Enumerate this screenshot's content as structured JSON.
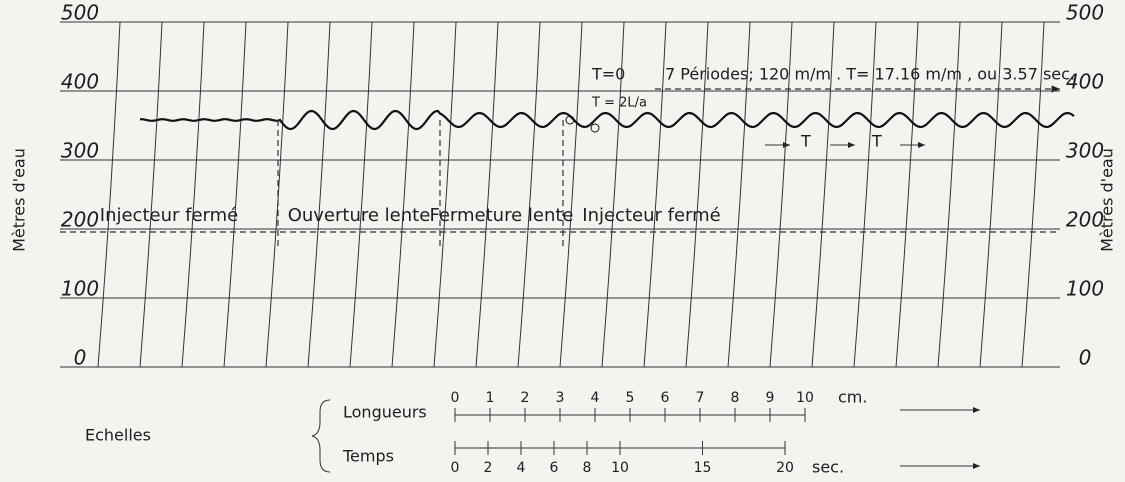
{
  "axis": {
    "label_left": "Mètres d'eau",
    "label_right": "Mètres d'eau",
    "ticks": [
      0,
      100,
      200,
      300,
      400,
      500
    ]
  },
  "annotations": {
    "t0": "T=0",
    "periods": "7 Périodes; 120 m/m . T= 17.16 m/m , ou 3.57 sec.",
    "t_formula": "T = 2L/a",
    "t1": "T",
    "t2": "T"
  },
  "phases": [
    "Injecteur fermé",
    "Ouverture lente",
    "Fermeture lente",
    "Injecteur fermé"
  ],
  "scales": {
    "title": "Echelles",
    "length": {
      "label": "Longueurs",
      "ticks": [
        0,
        1,
        2,
        3,
        4,
        5,
        6,
        7,
        8,
        9,
        10
      ],
      "unit": "cm."
    },
    "time": {
      "label": "Temps",
      "ticks": [
        0,
        2,
        4,
        6,
        8,
        10,
        15,
        20
      ],
      "unit": "sec."
    }
  }
}
